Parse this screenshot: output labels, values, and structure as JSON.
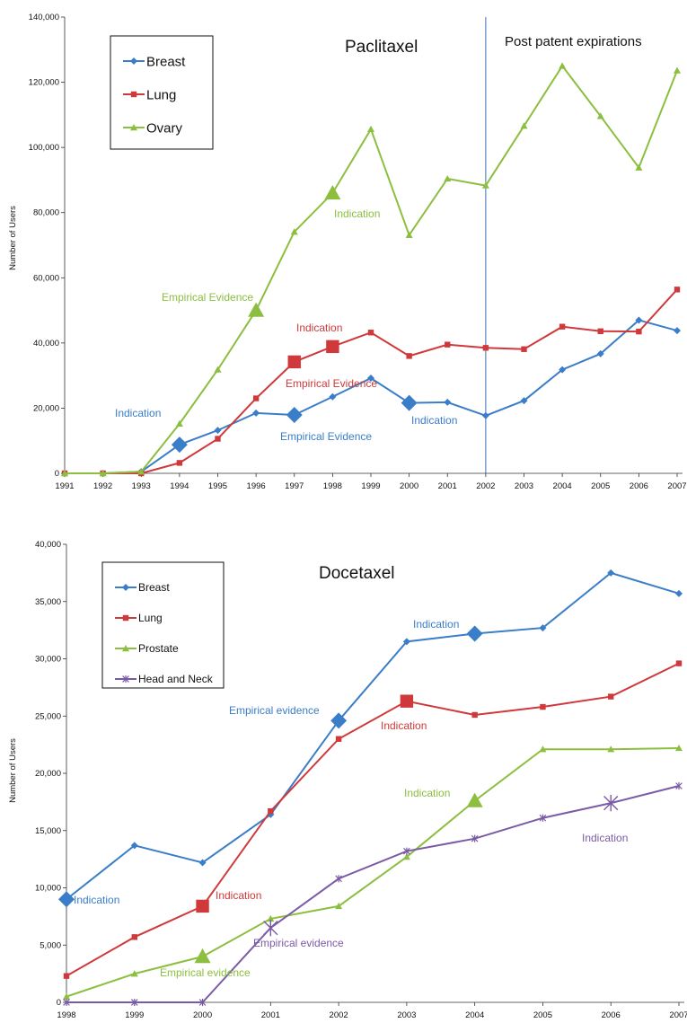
{
  "chart_data": [
    {
      "type": "line",
      "title": "Paclitaxel",
      "ylabel": "Number of Users",
      "xlabel": "",
      "x": [
        "1991",
        "1992",
        "1993",
        "1994",
        "1995",
        "1996",
        "1997",
        "1998",
        "1999",
        "2000",
        "2001",
        "2002",
        "2003",
        "2004",
        "2005",
        "2006",
        "2007"
      ],
      "ylim": [
        0,
        140000
      ],
      "yticks": [
        0,
        20000,
        40000,
        60000,
        80000,
        100000,
        120000,
        140000
      ],
      "ytick_labels": [
        "0",
        "20,000",
        "40,000",
        "60,000",
        "80,000",
        "100,000",
        "120,000",
        "140,000"
      ],
      "legend_position": "top-left",
      "series": [
        {
          "name": "Breast",
          "color": "#3a7dc9",
          "marker": "diamond",
          "values": [
            0,
            0,
            500,
            8800,
            13200,
            18500,
            17900,
            23500,
            29200,
            21600,
            21800,
            17700,
            22300,
            31800,
            36700,
            47000,
            43800
          ]
        },
        {
          "name": "Lung",
          "color": "#d0393b",
          "marker": "square",
          "values": [
            0,
            0,
            0,
            3200,
            10600,
            23000,
            34200,
            38900,
            43200,
            36000,
            39500,
            38500,
            38100,
            45000,
            43600,
            43500,
            56400
          ]
        },
        {
          "name": "Ovary",
          "color": "#8cbf3f",
          "marker": "triangle",
          "values": [
            0,
            0,
            500,
            15200,
            31800,
            50000,
            74100,
            86000,
            105600,
            73100,
            90400,
            88300,
            106600,
            125000,
            109600,
            93800,
            123600
          ]
        }
      ],
      "vline": {
        "x": "2002",
        "label": "Post patent expirations",
        "color": "#3a6fb5"
      },
      "highlights": [
        {
          "series": 0,
          "index": 3
        },
        {
          "series": 0,
          "index": 6
        },
        {
          "series": 0,
          "index": 9
        },
        {
          "series": 1,
          "index": 6
        },
        {
          "series": 1,
          "index": 7
        },
        {
          "series": 2,
          "index": 5
        },
        {
          "series": 2,
          "index": 7
        }
      ],
      "annotations": [
        {
          "text": "Indication",
          "color": "#3a7dc9",
          "x": "1994",
          "y": 8800
        },
        {
          "text": "Empirical Evidence",
          "color": "#3a7dc9",
          "x": "1997",
          "y": 17900
        },
        {
          "text": "Indication",
          "color": "#3a7dc9",
          "x": "2000",
          "y": 21600
        },
        {
          "text": "Indication",
          "color": "#d0393b",
          "x": "1998",
          "y": 38900
        },
        {
          "text": "Empirical Evidence",
          "color": "#d0393b",
          "x": "1997",
          "y": 34200
        },
        {
          "text": "Empirical Evidence",
          "color": "#8cbf3f",
          "x": "1996",
          "y": 50000
        },
        {
          "text": "Indication",
          "color": "#8cbf3f",
          "x": "1998",
          "y": 86000
        }
      ]
    },
    {
      "type": "line",
      "title": "Docetaxel",
      "ylabel": "Number of Users",
      "xlabel": "",
      "x": [
        "1998",
        "1999",
        "2000",
        "2001",
        "2002",
        "2003",
        "2004",
        "2005",
        "2006",
        "2007"
      ],
      "ylim": [
        0,
        40000
      ],
      "yticks": [
        0,
        5000,
        10000,
        15000,
        20000,
        25000,
        30000,
        35000,
        40000
      ],
      "ytick_labels": [
        "0",
        "5,000",
        "10,000",
        "15,000",
        "20,000",
        "25,000",
        "30,000",
        "35,000",
        "40,000"
      ],
      "legend_position": "top-left",
      "series": [
        {
          "name": "Breast",
          "color": "#3a7dc9",
          "marker": "diamond",
          "values": [
            9000,
            13700,
            12200,
            16400,
            24600,
            31500,
            32200,
            32700,
            37500,
            35700
          ]
        },
        {
          "name": "Lung",
          "color": "#d0393b",
          "marker": "square",
          "values": [
            2300,
            5700,
            8400,
            16700,
            23000,
            26300,
            25100,
            25800,
            26700,
            29600
          ]
        },
        {
          "name": "Prostate",
          "color": "#8cbf3f",
          "marker": "triangle",
          "values": [
            500,
            2500,
            4000,
            7300,
            8400,
            12700,
            17600,
            22100,
            22100,
            22200
          ]
        },
        {
          "name": "Head and Neck",
          "color": "#7b5ba6",
          "marker": "star",
          "values": [
            0,
            0,
            0,
            6500,
            10800,
            13200,
            14300,
            16100,
            17400,
            18900
          ]
        }
      ],
      "highlights": [
        {
          "series": 0,
          "index": 0
        },
        {
          "series": 0,
          "index": 4
        },
        {
          "series": 0,
          "index": 6
        },
        {
          "series": 1,
          "index": 2
        },
        {
          "series": 1,
          "index": 5
        },
        {
          "series": 2,
          "index": 2
        },
        {
          "series": 2,
          "index": 6
        },
        {
          "series": 3,
          "index": 3
        },
        {
          "series": 3,
          "index": 8
        }
      ],
      "annotations": [
        {
          "text": "Indication",
          "color": "#3a7dc9",
          "x": "1998",
          "y": 9000
        },
        {
          "text": "Empirical evidence",
          "color": "#3a7dc9",
          "x": "2002",
          "y": 24600
        },
        {
          "text": "Indication",
          "color": "#3a7dc9",
          "x": "2004",
          "y": 32200
        },
        {
          "text": "Indication",
          "color": "#d0393b",
          "x": "2000",
          "y": 8400
        },
        {
          "text": "Indication",
          "color": "#d0393b",
          "x": "2003",
          "y": 26300
        },
        {
          "text": "Empirical evidence",
          "color": "#8cbf3f",
          "x": "2000",
          "y": 4000
        },
        {
          "text": "Indication",
          "color": "#8cbf3f",
          "x": "2004",
          "y": 17600
        },
        {
          "text": "Empirical evidence",
          "color": "#7b5ba6",
          "x": "2001",
          "y": 6500
        },
        {
          "text": "Indication",
          "color": "#7b5ba6",
          "x": "2006",
          "y": 17400
        }
      ]
    }
  ]
}
